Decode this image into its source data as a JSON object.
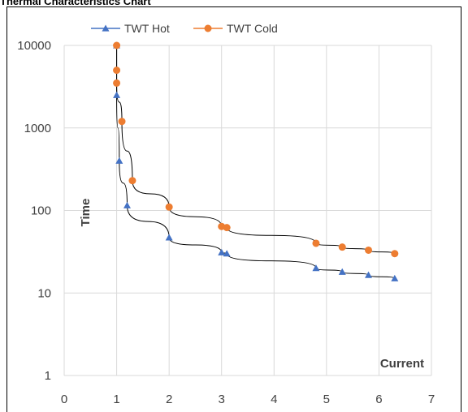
{
  "chart_data": {
    "type": "scatter",
    "title": "Thermal Characteristics Chart",
    "xlabel": "Current",
    "ylabel": "Time",
    "xlim": [
      0,
      7
    ],
    "ylim": [
      1,
      10000
    ],
    "yscale": "log",
    "grid": true,
    "legend_position": "top",
    "x_ticks": [
      "0",
      "1",
      "2",
      "3",
      "4",
      "5",
      "6",
      "7"
    ],
    "y_ticks": [
      "1",
      "10",
      "100",
      "1000",
      "10000"
    ],
    "series": [
      {
        "name": "TWT Hot",
        "color": "#4472c4",
        "marker": "triangle",
        "x": [
          1.0,
          1.0,
          1.05,
          1.2,
          2.0,
          3.0,
          3.1,
          4.8,
          5.3,
          5.8,
          6.3
        ],
        "y": [
          10000,
          2500,
          400,
          115,
          47,
          31,
          30,
          20,
          18,
          16.5,
          15
        ]
      },
      {
        "name": "TWT Cold",
        "color": "#ed7d31",
        "marker": "circle",
        "x": [
          1.0,
          1.0,
          1.0,
          1.1,
          1.3,
          2.0,
          3.0,
          3.1,
          4.8,
          5.3,
          5.8,
          6.3
        ],
        "y": [
          10000,
          5000,
          3500,
          1200,
          230,
          110,
          64,
          62,
          40,
          36,
          33,
          30
        ]
      }
    ]
  }
}
